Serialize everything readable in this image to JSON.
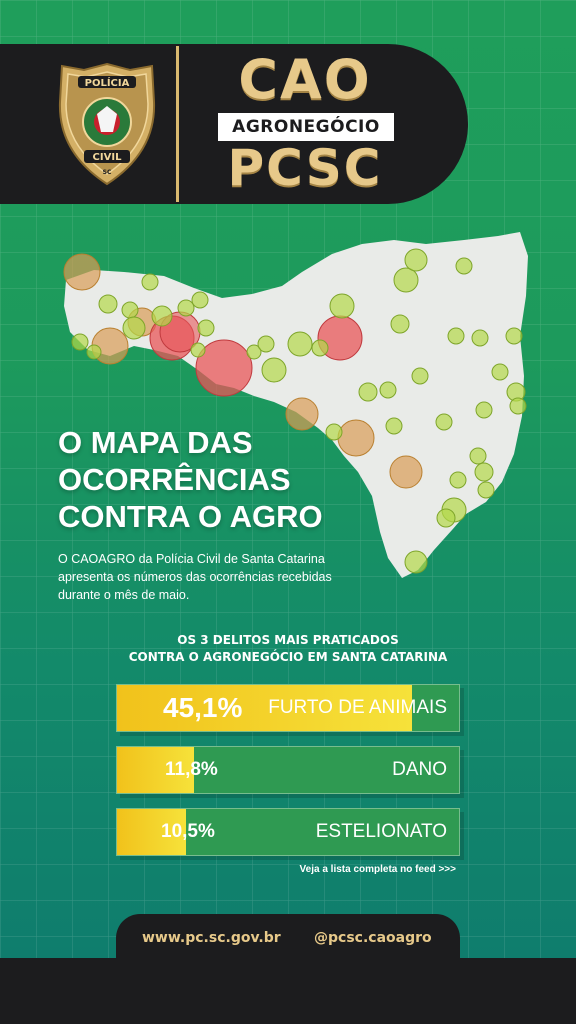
{
  "header": {
    "badge": {
      "top_text": "POLÍCIA",
      "bottom_text": "CIVIL",
      "small_text": "SC",
      "icon": "police-badge-icon"
    },
    "brand_top": "CAO",
    "brand_sub": "AGRONEGÓCIO",
    "brand_bottom": "PCSC"
  },
  "headline": "O MAPA DAS OCORRÊNCIAS CONTRA O AGRO",
  "intro": "O CAOAGRO da Polícia Civil de Santa Catarina apresenta os números das ocorrências recebidas durante o mês de maio.",
  "top3": {
    "title_line1": "OS 3 DELITOS MAIS PRATICADOS",
    "title_line2": "CONTRA O AGRONEGÓCIO EM SANTA CATARINA",
    "items": [
      {
        "percent": "45,1%",
        "label": "FURTO DE ANIMAIS",
        "value": 45.1
      },
      {
        "percent": "11,8%",
        "label": "DANO",
        "value": 11.8
      },
      {
        "percent": "10,5%",
        "label": "ESTELIONATO",
        "value": 10.5
      }
    ]
  },
  "feed_note": "Veja a lista completa no feed >>>",
  "footer": {
    "site": "www.pc.sc.gov.br",
    "handle": "@pcsc.caoagro"
  },
  "colors": {
    "background_top": "#1f9e5b",
    "background_bottom": "#0e7a6e",
    "dark": "#1c1c1e",
    "gold": "#e7c98a",
    "bar_yellow": "#f1c21b",
    "bar_green": "#2f9a52",
    "marker_green": "#b4d94a",
    "marker_orange": "#d9a056",
    "marker_red": "#e8575a"
  }
}
